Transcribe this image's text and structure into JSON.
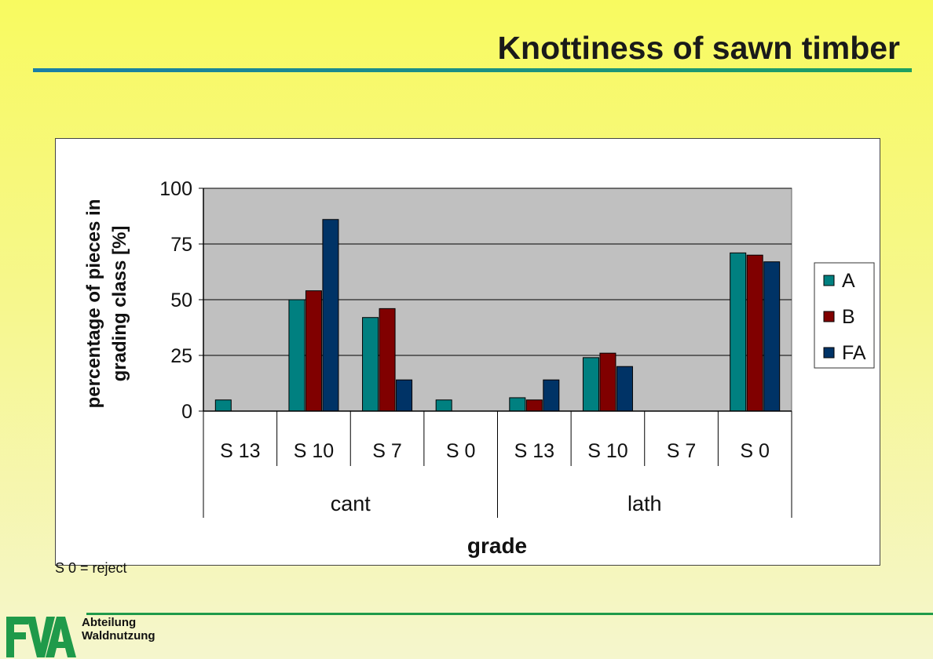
{
  "slide": {
    "title": "Knottiness of sawn timber",
    "note": "S 0 = reject",
    "department_line1": "Abteilung",
    "department_line2": "Waldnutzung",
    "logo_text": "FVA"
  },
  "colors": {
    "A": "#008080",
    "B": "#800000",
    "FA": "#003366",
    "plot_bg": "#c0c0c0"
  },
  "chart_data": {
    "type": "bar",
    "ylabel_line1": "percentage of pieces in",
    "ylabel_line2": "grading class [%]",
    "xlabel": "grade",
    "ylim": [
      0,
      100
    ],
    "yticks": [
      0,
      25,
      50,
      75,
      100
    ],
    "grid": true,
    "legend_position": "right",
    "categories": [
      "S 13",
      "S 10",
      "S 7",
      "S 0",
      "S 13",
      "S 10",
      "S 7",
      "S 0"
    ],
    "groups": [
      {
        "label": "cant",
        "categories": 4
      },
      {
        "label": "lath",
        "categories": 4
      }
    ],
    "series": [
      {
        "name": "A",
        "values": [
          5,
          50,
          42,
          5,
          6,
          24,
          0,
          71
        ]
      },
      {
        "name": "B",
        "values": [
          0,
          54,
          46,
          0,
          5,
          26,
          0,
          70
        ]
      },
      {
        "name": "FA",
        "values": [
          0,
          86,
          14,
          0,
          14,
          20,
          0,
          67
        ]
      }
    ]
  }
}
